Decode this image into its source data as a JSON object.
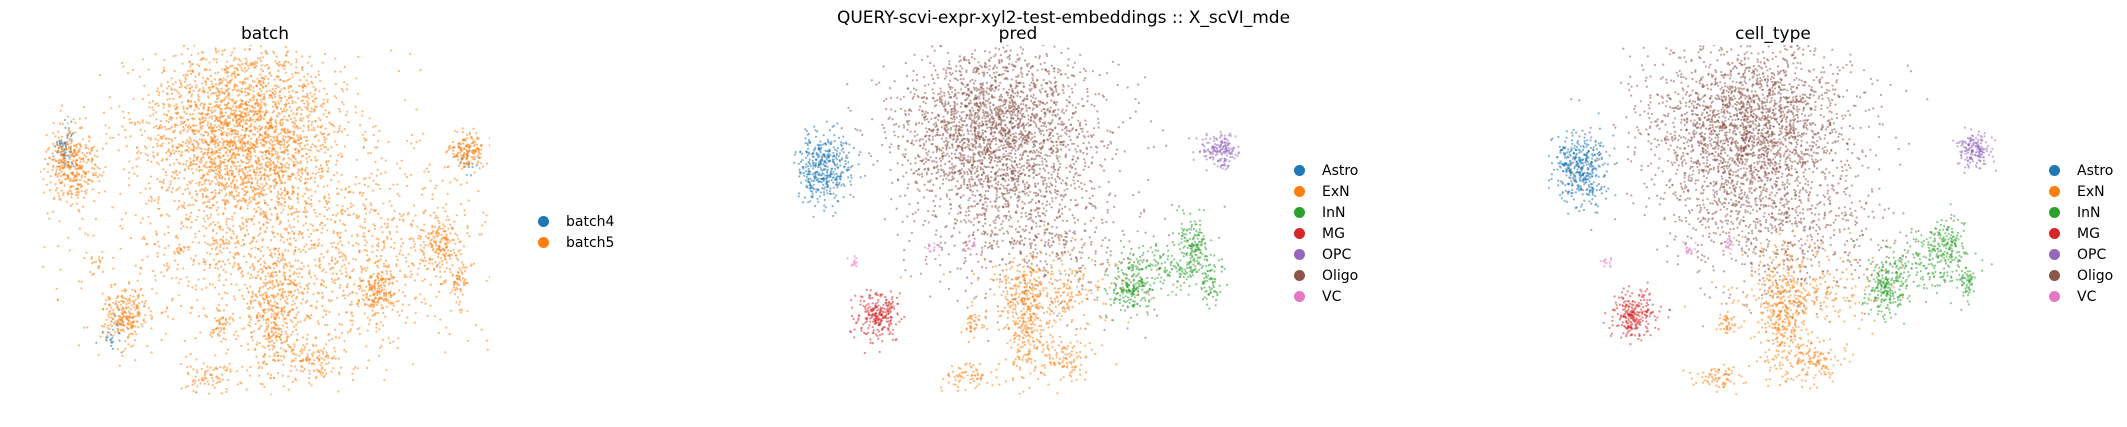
{
  "suptitle": "QUERY-scvi-expr-xyl2-test-embeddings :: X_scVI_mde",
  "chart_data": [
    {
      "type": "scatter",
      "title": "batch",
      "legend": {
        "placement": "right",
        "entries": [
          {
            "name": "batch4",
            "color": "#1f77b4"
          },
          {
            "name": "batch5",
            "color": "#ff7f0e"
          }
        ]
      },
      "grid": false,
      "axes": "off",
      "series": [
        {
          "name": "batch4",
          "color": "#1f77b4",
          "clusters": [
            {
              "x": 0.055,
              "y": 0.3,
              "sx": 0.01,
              "sy": 0.03,
              "n": 60
            },
            {
              "x": 0.16,
              "y": 0.84,
              "sx": 0.01,
              "sy": 0.03,
              "n": 25
            },
            {
              "x": 0.95,
              "y": 0.34,
              "sx": 0.01,
              "sy": 0.02,
              "n": 15
            }
          ]
        },
        {
          "name": "batch5",
          "color": "#ff7f0e",
          "clusters": [
            {
              "x": 0.45,
              "y": 0.25,
              "sx": 0.11,
              "sy": 0.13,
              "n": 2600
            },
            {
              "x": 0.07,
              "y": 0.35,
              "sx": 0.03,
              "sy": 0.05,
              "n": 380
            },
            {
              "x": 0.95,
              "y": 0.3,
              "sx": 0.022,
              "sy": 0.025,
              "n": 160
            },
            {
              "x": 0.19,
              "y": 0.77,
              "sx": 0.025,
              "sy": 0.035,
              "n": 240
            },
            {
              "x": 0.52,
              "y": 0.78,
              "sx": 0.028,
              "sy": 0.09,
              "n": 330
            },
            {
              "x": 0.6,
              "y": 0.9,
              "sx": 0.03,
              "sy": 0.03,
              "n": 110
            },
            {
              "x": 0.38,
              "y": 0.95,
              "sx": 0.03,
              "sy": 0.02,
              "n": 70
            },
            {
              "x": 0.75,
              "y": 0.7,
              "sx": 0.025,
              "sy": 0.035,
              "n": 190
            },
            {
              "x": 0.89,
              "y": 0.57,
              "sx": 0.02,
              "sy": 0.04,
              "n": 160
            },
            {
              "x": 0.93,
              "y": 0.68,
              "sx": 0.01,
              "sy": 0.03,
              "n": 60
            },
            {
              "x": 0.4,
              "y": 0.8,
              "sx": 0.01,
              "sy": 0.02,
              "n": 40
            },
            {
              "x": 0.31,
              "y": 0.58,
              "sx": 0.01,
              "sy": 0.01,
              "n": 15
            },
            {
              "x": 0.4,
              "y": 0.57,
              "sx": 0.01,
              "sy": 0.01,
              "n": 15
            },
            {
              "x": 0.13,
              "y": 0.62,
              "sx": 0.01,
              "sy": 0.01,
              "n": 12
            },
            {
              "x": 0.58,
              "y": 0.6,
              "sx": 0.22,
              "sy": 0.15,
              "n": 1500
            }
          ]
        }
      ]
    },
    {
      "type": "scatter",
      "title": "pred",
      "legend": {
        "placement": "right",
        "entries": [
          {
            "name": "Astro",
            "color": "#1f77b4"
          },
          {
            "name": "ExN",
            "color": "#ff7f0e"
          },
          {
            "name": "InN",
            "color": "#2ca02c"
          },
          {
            "name": "MG",
            "color": "#d62728"
          },
          {
            "name": "OPC",
            "color": "#9467bd"
          },
          {
            "name": "Oligo",
            "color": "#8c564b"
          },
          {
            "name": "VC",
            "color": "#e377c2"
          }
        ]
      },
      "grid": false,
      "axes": "off",
      "series": [
        {
          "name": "Oligo",
          "color": "#8c564b",
          "clusters": [
            {
              "x": 0.45,
              "y": 0.25,
              "sx": 0.11,
              "sy": 0.13,
              "n": 2600
            },
            {
              "x": 0.55,
              "y": 0.55,
              "sx": 0.12,
              "sy": 0.1,
              "n": 500
            }
          ]
        },
        {
          "name": "Astro",
          "color": "#1f77b4",
          "clusters": [
            {
              "x": 0.07,
              "y": 0.35,
              "sx": 0.03,
              "sy": 0.05,
              "n": 420
            }
          ]
        },
        {
          "name": "OPC",
          "color": "#9467bd",
          "clusters": [
            {
              "x": 0.95,
              "y": 0.3,
              "sx": 0.022,
              "sy": 0.025,
              "n": 170
            }
          ]
        },
        {
          "name": "MG",
          "color": "#d62728",
          "clusters": [
            {
              "x": 0.19,
              "y": 0.77,
              "sx": 0.025,
              "sy": 0.035,
              "n": 250
            }
          ]
        },
        {
          "name": "ExN",
          "color": "#ff7f0e",
          "clusters": [
            {
              "x": 0.52,
              "y": 0.78,
              "sx": 0.028,
              "sy": 0.09,
              "n": 330
            },
            {
              "x": 0.6,
              "y": 0.9,
              "sx": 0.03,
              "sy": 0.03,
              "n": 110
            },
            {
              "x": 0.38,
              "y": 0.95,
              "sx": 0.03,
              "sy": 0.02,
              "n": 70
            },
            {
              "x": 0.4,
              "y": 0.8,
              "sx": 0.01,
              "sy": 0.02,
              "n": 40
            },
            {
              "x": 0.58,
              "y": 0.7,
              "sx": 0.08,
              "sy": 0.06,
              "n": 250
            }
          ]
        },
        {
          "name": "InN",
          "color": "#2ca02c",
          "clusters": [
            {
              "x": 0.75,
              "y": 0.7,
              "sx": 0.025,
              "sy": 0.035,
              "n": 190
            },
            {
              "x": 0.89,
              "y": 0.57,
              "sx": 0.02,
              "sy": 0.04,
              "n": 160
            },
            {
              "x": 0.93,
              "y": 0.68,
              "sx": 0.01,
              "sy": 0.03,
              "n": 60
            },
            {
              "x": 0.82,
              "y": 0.63,
              "sx": 0.06,
              "sy": 0.04,
              "n": 180
            }
          ]
        },
        {
          "name": "VC",
          "color": "#e377c2",
          "clusters": [
            {
              "x": 0.31,
              "y": 0.58,
              "sx": 0.01,
              "sy": 0.01,
              "n": 15
            },
            {
              "x": 0.4,
              "y": 0.57,
              "sx": 0.01,
              "sy": 0.01,
              "n": 15
            },
            {
              "x": 0.13,
              "y": 0.62,
              "sx": 0.01,
              "sy": 0.01,
              "n": 12
            }
          ]
        }
      ]
    },
    {
      "type": "scatter",
      "title": "cell_type",
      "legend": {
        "placement": "right",
        "entries": [
          {
            "name": "Astro",
            "color": "#1f77b4"
          },
          {
            "name": "ExN",
            "color": "#ff7f0e"
          },
          {
            "name": "InN",
            "color": "#2ca02c"
          },
          {
            "name": "MG",
            "color": "#d62728"
          },
          {
            "name": "OPC",
            "color": "#9467bd"
          },
          {
            "name": "Oligo",
            "color": "#8c564b"
          },
          {
            "name": "VC",
            "color": "#e377c2"
          }
        ]
      },
      "grid": false,
      "axes": "off",
      "series": [
        {
          "name": "Oligo",
          "color": "#8c564b",
          "clusters": [
            {
              "x": 0.45,
              "y": 0.25,
              "sx": 0.11,
              "sy": 0.13,
              "n": 2600
            },
            {
              "x": 0.55,
              "y": 0.55,
              "sx": 0.12,
              "sy": 0.1,
              "n": 500
            }
          ]
        },
        {
          "name": "Astro",
          "color": "#1f77b4",
          "clusters": [
            {
              "x": 0.07,
              "y": 0.35,
              "sx": 0.03,
              "sy": 0.05,
              "n": 420
            }
          ]
        },
        {
          "name": "OPC",
          "color": "#9467bd",
          "clusters": [
            {
              "x": 0.95,
              "y": 0.3,
              "sx": 0.022,
              "sy": 0.025,
              "n": 170
            }
          ]
        },
        {
          "name": "MG",
          "color": "#d62728",
          "clusters": [
            {
              "x": 0.19,
              "y": 0.77,
              "sx": 0.025,
              "sy": 0.035,
              "n": 250
            }
          ]
        },
        {
          "name": "ExN",
          "color": "#ff7f0e",
          "clusters": [
            {
              "x": 0.52,
              "y": 0.78,
              "sx": 0.028,
              "sy": 0.09,
              "n": 330
            },
            {
              "x": 0.6,
              "y": 0.9,
              "sx": 0.03,
              "sy": 0.03,
              "n": 110
            },
            {
              "x": 0.38,
              "y": 0.95,
              "sx": 0.03,
              "sy": 0.02,
              "n": 70
            },
            {
              "x": 0.4,
              "y": 0.8,
              "sx": 0.01,
              "sy": 0.02,
              "n": 40
            },
            {
              "x": 0.58,
              "y": 0.7,
              "sx": 0.08,
              "sy": 0.06,
              "n": 250
            }
          ]
        },
        {
          "name": "InN",
          "color": "#2ca02c",
          "clusters": [
            {
              "x": 0.75,
              "y": 0.7,
              "sx": 0.025,
              "sy": 0.035,
              "n": 190
            },
            {
              "x": 0.89,
              "y": 0.57,
              "sx": 0.02,
              "sy": 0.04,
              "n": 160
            },
            {
              "x": 0.93,
              "y": 0.68,
              "sx": 0.01,
              "sy": 0.03,
              "n": 60
            },
            {
              "x": 0.82,
              "y": 0.63,
              "sx": 0.06,
              "sy": 0.04,
              "n": 180
            }
          ]
        },
        {
          "name": "VC",
          "color": "#e377c2",
          "clusters": [
            {
              "x": 0.31,
              "y": 0.58,
              "sx": 0.01,
              "sy": 0.01,
              "n": 15
            },
            {
              "x": 0.4,
              "y": 0.57,
              "sx": 0.01,
              "sy": 0.01,
              "n": 15
            },
            {
              "x": 0.13,
              "y": 0.62,
              "sx": 0.01,
              "sy": 0.01,
              "n": 12
            }
          ]
        }
      ]
    }
  ]
}
